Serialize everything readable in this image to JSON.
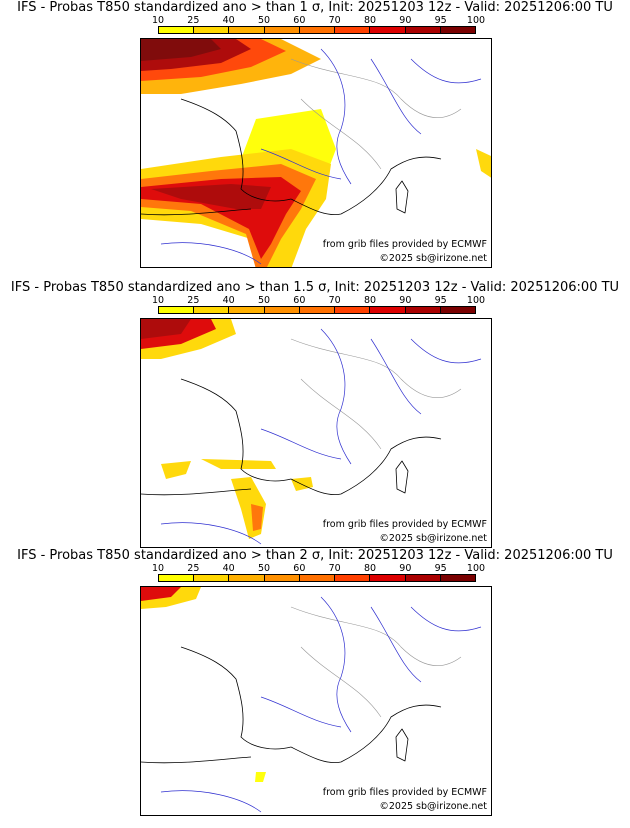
{
  "colorbar": {
    "ticks": [
      "10",
      "25",
      "40",
      "50",
      "60",
      "70",
      "80",
      "90",
      "95",
      "100"
    ],
    "colors": [
      "#ffff00",
      "#ffd700",
      "#ffb000",
      "#ff9000",
      "#ff7000",
      "#ff4000",
      "#dd0000",
      "#aa0000",
      "#7a0000"
    ]
  },
  "panels": [
    {
      "title": "IFS - Probas T850  standardized ano > than 1 σ, Init: 20251203 12z - Valid: 20251206:00 TU",
      "source_text": "from grib files provided by ECMWF",
      "copyright_text": "©2025 sb@irizone.net"
    },
    {
      "title": "IFS - Probas T850  standardized ano > than 1.5 σ, Init: 20251203 12z - Valid: 20251206:00 TU",
      "source_text": "from grib files provided by ECMWF",
      "copyright_text": "©2025 sb@irizone.net"
    },
    {
      "title": "IFS - Probas T850  standardized ano > than 2 σ, Init: 20251203 12z - Valid: 20251206:00 TU",
      "source_text": "from grib files provided by ECMWF",
      "copyright_text": "©2025 sb@irizone.net"
    }
  ]
}
